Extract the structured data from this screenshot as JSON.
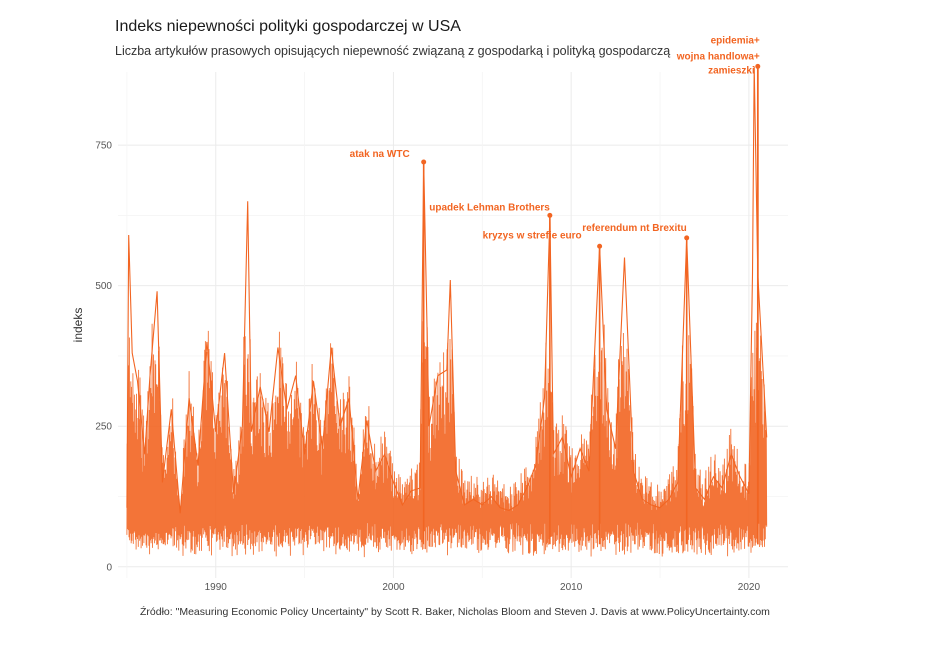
{
  "title": "Indeks niepewności polityki gospodarczej w USA",
  "subtitle": "Liczba artykułów prasowych opisujących niepewność związaną z gospodarką i polityką gospodarczą",
  "caption": "Źródło:  \"Measuring Economic Policy Uncertainty\" by Scott R. Baker, Nicholas Bloom and Steven J. Davis at www.PolicyUncertainty.com",
  "colors": {
    "series": "#F26522",
    "grid": "#EBEBEB",
    "axis_text": "#555555"
  },
  "chart_data": {
    "type": "line",
    "ylabel": "indeks",
    "xlabel": "",
    "xlim": [
      1984.5,
      2022.2
    ],
    "ylim": [
      -20,
      880
    ],
    "x_ticks": [
      1990,
      2000,
      2010,
      2020
    ],
    "y_ticks": [
      0,
      250,
      500,
      750
    ],
    "grid": true,
    "legend": "none",
    "series": [
      {
        "x": [
          1985.0,
          1985.1,
          1985.3,
          1985.6,
          1986.0,
          1986.3,
          1986.7,
          1987.0,
          1987.5,
          1988.0,
          1988.5,
          1989.0,
          1989.5,
          1990.0,
          1990.5,
          1991.0,
          1991.5,
          1991.8,
          1992.0,
          1992.5,
          1993.0,
          1993.5,
          1994.0,
          1994.5,
          1995.0,
          1995.5,
          1996.0,
          1996.5,
          1997.0,
          1997.5,
          1998.0,
          1998.5,
          1999.0,
          1999.5,
          2000.0,
          2000.5,
          2001.0,
          2001.5,
          2001.7,
          2002.0,
          2002.5,
          2003.0,
          2003.2,
          2003.5,
          2004.0,
          2004.5,
          2005.0,
          2005.5,
          2006.0,
          2006.5,
          2007.0,
          2007.5,
          2008.0,
          2008.5,
          2008.8,
          2009.0,
          2009.5,
          2010.0,
          2010.5,
          2011.0,
          2011.6,
          2012.0,
          2012.5,
          2013.0,
          2013.5,
          2014.0,
          2014.5,
          2015.0,
          2015.5,
          2016.0,
          2016.5,
          2017.0,
          2017.5,
          2018.0,
          2018.5,
          2019.0,
          2019.5,
          2020.0,
          2020.2,
          2020.3,
          2020.5,
          2021.0
        ],
        "values": [
          105,
          590,
          380,
          330,
          200,
          340,
          490,
          150,
          280,
          95,
          300,
          180,
          400,
          240,
          380,
          130,
          250,
          650,
          240,
          320,
          240,
          390,
          280,
          340,
          200,
          330,
          210,
          390,
          250,
          300,
          120,
          260,
          170,
          200,
          150,
          110,
          135,
          140,
          720,
          250,
          340,
          350,
          510,
          170,
          110,
          120,
          110,
          125,
          105,
          100,
          110,
          140,
          180,
          300,
          625,
          200,
          230,
          160,
          210,
          170,
          570,
          280,
          210,
          550,
          170,
          120,
          110,
          105,
          120,
          150,
          585,
          140,
          120,
          160,
          140,
          200,
          160,
          130,
          520,
          890,
          520,
          230
        ]
      }
    ],
    "annotations": [
      {
        "label": "atak na WTC",
        "x": 2001.7,
        "y": 720
      },
      {
        "label": "upadek Lehman Brothers",
        "x": 2008.8,
        "y": 625
      },
      {
        "label": "kryzys w strefie euro",
        "x": 2011.6,
        "y": 570
      },
      {
        "label": "referendum nt Brexitu",
        "x": 2016.5,
        "y": 585
      },
      {
        "label": "zamieszki",
        "x": 2020.5,
        "y": 890
      },
      {
        "label": "wojna handlowa+",
        "x": 2020.5,
        "y": 890
      },
      {
        "label": "epidemia+",
        "x": 2020.5,
        "y": 890
      }
    ]
  }
}
